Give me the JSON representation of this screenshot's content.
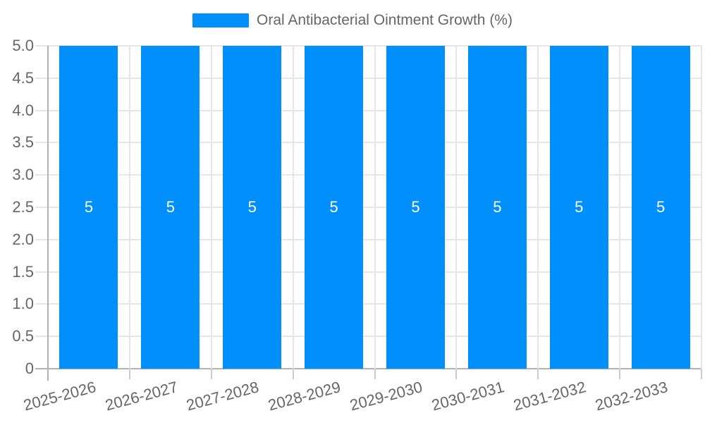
{
  "chart_data": {
    "type": "bar",
    "title": "Oral Antibacterial Ointment Growth (%)",
    "legend_position": "top",
    "categories": [
      "2025-2026",
      "2026-2027",
      "2027-2028",
      "2028-2029",
      "2029-2030",
      "2030-2031",
      "2031-2032",
      "2032-2033"
    ],
    "values": [
      5,
      5,
      5,
      5,
      5,
      5,
      5,
      5
    ],
    "bar_labels": [
      "5",
      "5",
      "5",
      "5",
      "5",
      "5",
      "5",
      "5"
    ],
    "xlabel": "",
    "ylabel": "",
    "ylim": [
      0,
      5
    ],
    "ytick_step": 0.5,
    "ytick_labels": [
      "5.0",
      "4.5",
      "4.0",
      "3.5",
      "3.0",
      "2.5",
      "2.0",
      "1.5",
      "1.0",
      "0.5",
      "0"
    ],
    "grid": "on",
    "colors": {
      "bar": "#008FFB",
      "bar_label": "#ffffff",
      "axis_label": "#666666",
      "legend_text": "#666666",
      "gridline": "#e6e6e6",
      "axis_line": "#b3b3b3",
      "tick": "#cccccc"
    }
  }
}
